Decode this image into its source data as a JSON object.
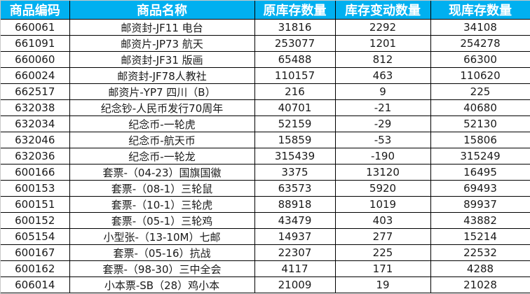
{
  "table": {
    "columns": [
      "商品编码",
      "商品名称",
      "原库存数量",
      "库存变动数量",
      "现库存数量"
    ],
    "header_color": "#00B0F0",
    "rows": [
      {
        "code": "660061",
        "name": "邮资封-JF11 电台",
        "original": "31816",
        "change": "2292",
        "current": "34108"
      },
      {
        "code": "661091",
        "name": "邮资片-JP73 航天",
        "original": "253077",
        "change": "1201",
        "current": "254278"
      },
      {
        "code": "660060",
        "name": "邮资封-JF31 版画",
        "original": "65488",
        "change": "812",
        "current": "66300"
      },
      {
        "code": "660024",
        "name": "邮资封-JF78人教社",
        "original": "110157",
        "change": "463",
        "current": "110620"
      },
      {
        "code": "662517",
        "name": "邮资片-YP7 四川（B）",
        "original": "216",
        "change": "9",
        "current": "225"
      },
      {
        "code": "632038",
        "name": "纪念钞-人民币发行70周年",
        "original": "40701",
        "change": "-21",
        "current": "40680"
      },
      {
        "code": "632034",
        "name": "纪念币-一轮虎",
        "original": "52159",
        "change": "-29",
        "current": "52130"
      },
      {
        "code": "632046",
        "name": "纪念币-航天币",
        "original": "15859",
        "change": "-53",
        "current": "15806"
      },
      {
        "code": "632036",
        "name": "纪念币-一轮龙",
        "original": "315439",
        "change": "-190",
        "current": "315249"
      },
      {
        "code": "600166",
        "name": "套票-（04-23）国旗国徽",
        "original": "3375",
        "change": "13120",
        "current": "16495"
      },
      {
        "code": "600153",
        "name": "套票-（08-1）三轮鼠",
        "original": "63573",
        "change": "5920",
        "current": "69493"
      },
      {
        "code": "600151",
        "name": "套票-（10-1）三轮虎",
        "original": "88918",
        "change": "1019",
        "current": "89937"
      },
      {
        "code": "600152",
        "name": "套票-（05-1）三轮鸡",
        "original": "43479",
        "change": "403",
        "current": "43882"
      },
      {
        "code": "605154",
        "name": "小型张-（13-10M）七邮",
        "original": "14937",
        "change": "277",
        "current": "15214"
      },
      {
        "code": "600167",
        "name": "套票-（05-16）抗战",
        "original": "22307",
        "change": "225",
        "current": "22532"
      },
      {
        "code": "600162",
        "name": "套票-（98-30）三中全会",
        "original": "4117",
        "change": "171",
        "current": "4288"
      },
      {
        "code": "606014",
        "name": "小本票-SB（28）鸡小本",
        "original": "21009",
        "change": "19",
        "current": "21028"
      }
    ]
  }
}
